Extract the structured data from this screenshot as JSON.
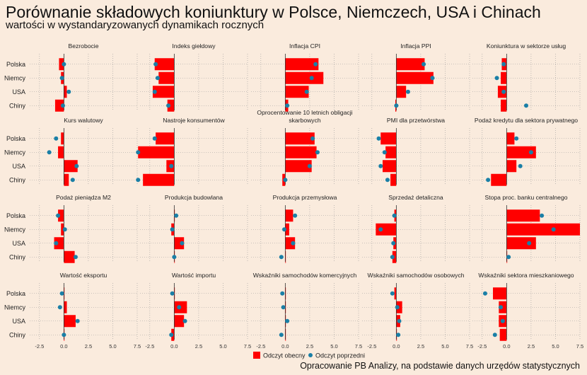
{
  "title": "Porównanie składowych koniunktury w Polsce, Niemczech, USA i Chinach",
  "subtitle": "wartości w wystandaryzowanych dynamikach rocznych",
  "caption": "Opracowanie PB Analizy, na podstawie danych urzędów statystycznych",
  "colors": {
    "current": "#FF0000",
    "previous": "#1A7FA6",
    "background": "#FAEBDD",
    "grid": "#999999"
  },
  "chart_data": {
    "type": "bar",
    "orientation": "horizontal",
    "layout": "small multiples 4x5",
    "categories": [
      "Polska",
      "Niemcy",
      "USA",
      "Chiny"
    ],
    "xlim": [
      -3.5,
      7.5
    ],
    "xticks": [
      "-2.5",
      "0.0",
      "2.5",
      "5.0",
      "7.5"
    ],
    "grid": true,
    "legend": {
      "position": "bottom",
      "items": [
        {
          "name": "Odczyt obecny",
          "shape": "bar"
        },
        {
          "name": "Odczyt poprzedni",
          "shape": "point"
        }
      ]
    },
    "panels": [
      {
        "title": "Bezrobocie",
        "current": [
          -0.5,
          -0.3,
          0.3,
          -0.9
        ],
        "previous": [
          0.0,
          -0.2,
          0.5,
          -0.1
        ]
      },
      {
        "title": "Indeks giełdowy",
        "current": [
          -2.0,
          -1.6,
          -2.2,
          -0.7
        ],
        "previous": [
          -1.9,
          -1.7,
          -2.0,
          -0.6
        ]
      },
      {
        "title": "Inflacja CPI",
        "current": [
          3.4,
          3.9,
          2.4,
          0.3
        ],
        "previous": [
          3.1,
          2.7,
          2.2,
          0.2
        ]
      },
      {
        "title": "Inflacja PPI",
        "current": [
          2.9,
          3.8,
          1.0,
          -0.1
        ],
        "previous": [
          2.8,
          3.7,
          1.2,
          0.0
        ]
      },
      {
        "title": "Koniunktura w sektorze usług",
        "current": [
          -0.5,
          -0.6,
          -0.9,
          -0.6
        ],
        "previous": [
          -0.3,
          -1.0,
          -0.3,
          2.0
        ]
      },
      {
        "title": "Kurs walutowy",
        "current": [
          -0.3,
          -0.6,
          1.4,
          0.5
        ],
        "previous": [
          -0.8,
          -1.5,
          1.3,
          0.9
        ]
      },
      {
        "title": "Nastroje konsumentów",
        "current": [
          -1.9,
          -3.7,
          -0.8,
          -3.2
        ],
        "previous": [
          -2.0,
          -3.7,
          -0.3,
          -3.7
        ]
      },
      {
        "title": "Oprocentowanie 10 letnich obligacji skarbowych",
        "current": [
          3.0,
          3.2,
          2.7,
          -0.3
        ],
        "previous": [
          2.8,
          3.3,
          2.5,
          0.0
        ]
      },
      {
        "title": "PMI dla przetwórstwa",
        "current": [
          -1.6,
          -1.1,
          -1.4,
          -0.6
        ],
        "previous": [
          -1.8,
          -1.2,
          -1.6,
          -0.9
        ]
      },
      {
        "title": "Podaż kredytu dla sektora prywatnego",
        "current": [
          0.8,
          3.0,
          1.0,
          -1.6
        ],
        "previous": [
          1.0,
          2.5,
          1.4,
          -1.9
        ]
      },
      {
        "title": "Podaż pieniądza M2",
        "current": [
          -0.6,
          -0.3,
          -1.0,
          1.1
        ],
        "previous": [
          -0.6,
          0.1,
          -0.8,
          1.2
        ]
      },
      {
        "title": "Produkcja budowlana",
        "current": [
          0.0,
          -0.3,
          1.0,
          0.0
        ],
        "previous": [
          0.2,
          -0.2,
          0.8,
          0.0
        ]
      },
      {
        "title": "Produkcja przemysłowa",
        "current": [
          0.8,
          0.4,
          1.0,
          0.0
        ],
        "previous": [
          1.0,
          -0.1,
          0.8,
          -0.4
        ]
      },
      {
        "title": "Sprzedaż detaliczna",
        "current": [
          -0.2,
          -2.1,
          -0.3,
          -0.4
        ],
        "previous": [
          -0.2,
          -1.6,
          -0.3,
          -0.4
        ]
      },
      {
        "title": "Stopa proc. banku centralnego",
        "current": [
          3.4,
          7.5,
          3.0,
          0.0
        ],
        "previous": [
          3.6,
          4.8,
          2.3,
          0.2
        ]
      },
      {
        "title": "Wartość eksportu",
        "current": [
          0.0,
          0.3,
          1.2,
          0.0
        ],
        "previous": [
          -0.2,
          -0.4,
          1.4,
          0.0
        ]
      },
      {
        "title": "Wartość importu",
        "current": [
          0.0,
          1.3,
          1.0,
          -0.3
        ],
        "previous": [
          -0.2,
          0.5,
          1.1,
          -0.3
        ]
      },
      {
        "title": "Wskaźniki samochodów komercyjnych",
        "current": [
          0.0,
          0.0,
          0.0,
          0.0
        ],
        "previous": [
          -0.3,
          -0.2,
          0.2,
          -0.4
        ]
      },
      {
        "title": "Wskaźniki samochodów osobowych",
        "current": [
          -0.2,
          0.6,
          0.4,
          0.0
        ],
        "previous": [
          -0.4,
          0.1,
          0.3,
          0.2
        ]
      },
      {
        "title": "Wskaźniki sektora mieszkaniowego",
        "current": [
          -1.4,
          -0.8,
          -0.8,
          -0.7
        ],
        "previous": [
          -2.2,
          -0.6,
          -0.4,
          -1.2
        ]
      }
    ]
  }
}
